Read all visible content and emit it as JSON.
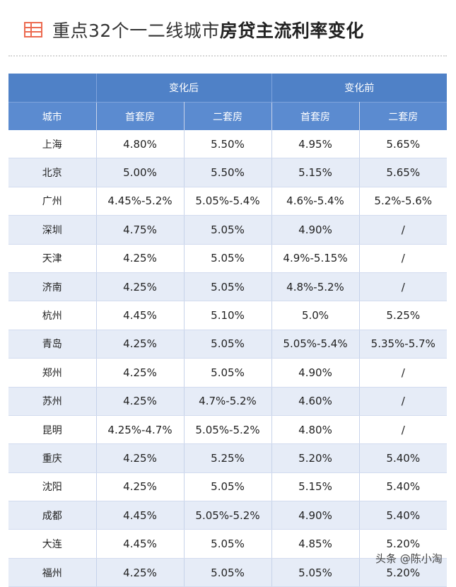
{
  "title": {
    "prefix": "重点32个一二线城市",
    "bold": "房贷主流利率变化"
  },
  "icon": "table-icon",
  "colors": {
    "accent": "#ec6a50",
    "header": "#4f81c7",
    "stripe": "#e6ecf7"
  },
  "table": {
    "group_headers": [
      "变化后",
      "变化前"
    ],
    "columns": [
      "城市",
      "首套房",
      "二套房",
      "首套房",
      "二套房"
    ],
    "rows": [
      [
        "上海",
        "4.80%",
        "5.50%",
        "4.95%",
        "5.65%"
      ],
      [
        "北京",
        "5.00%",
        "5.50%",
        "5.15%",
        "5.65%"
      ],
      [
        "广州",
        "4.45%-5.2%",
        "5.05%-5.4%",
        "4.6%-5.4%",
        "5.2%-5.6%"
      ],
      [
        "深圳",
        "4.75%",
        "5.05%",
        "4.90%",
        "/"
      ],
      [
        "天津",
        "4.25%",
        "5.05%",
        "4.9%-5.15%",
        "/"
      ],
      [
        "济南",
        "4.25%",
        "5.05%",
        "4.8%-5.2%",
        "/"
      ],
      [
        "杭州",
        "4.45%",
        "5.10%",
        "5.0%",
        "5.25%"
      ],
      [
        "青岛",
        "4.25%",
        "5.05%",
        "5.05%-5.4%",
        "5.35%-5.7%"
      ],
      [
        "郑州",
        "4.25%",
        "5.05%",
        "4.90%",
        "/"
      ],
      [
        "苏州",
        "4.25%",
        "4.7%-5.2%",
        "4.60%",
        "/"
      ],
      [
        "昆明",
        "4.25%-4.7%",
        "5.05%-5.2%",
        "4.80%",
        "/"
      ],
      [
        "重庆",
        "4.25%",
        "5.25%",
        "5.20%",
        "5.40%"
      ],
      [
        "沈阳",
        "4.25%",
        "5.05%",
        "5.15%",
        "5.40%"
      ],
      [
        "成都",
        "4.45%",
        "5.05%-5.2%",
        "4.90%",
        "5.40%"
      ],
      [
        "大连",
        "4.45%",
        "5.05%",
        "4.85%",
        "5.20%"
      ],
      [
        "福州",
        "4.25%",
        "5.05%",
        "5.05%",
        "5.20%"
      ]
    ]
  },
  "watermark": "头条 @陈小淘"
}
